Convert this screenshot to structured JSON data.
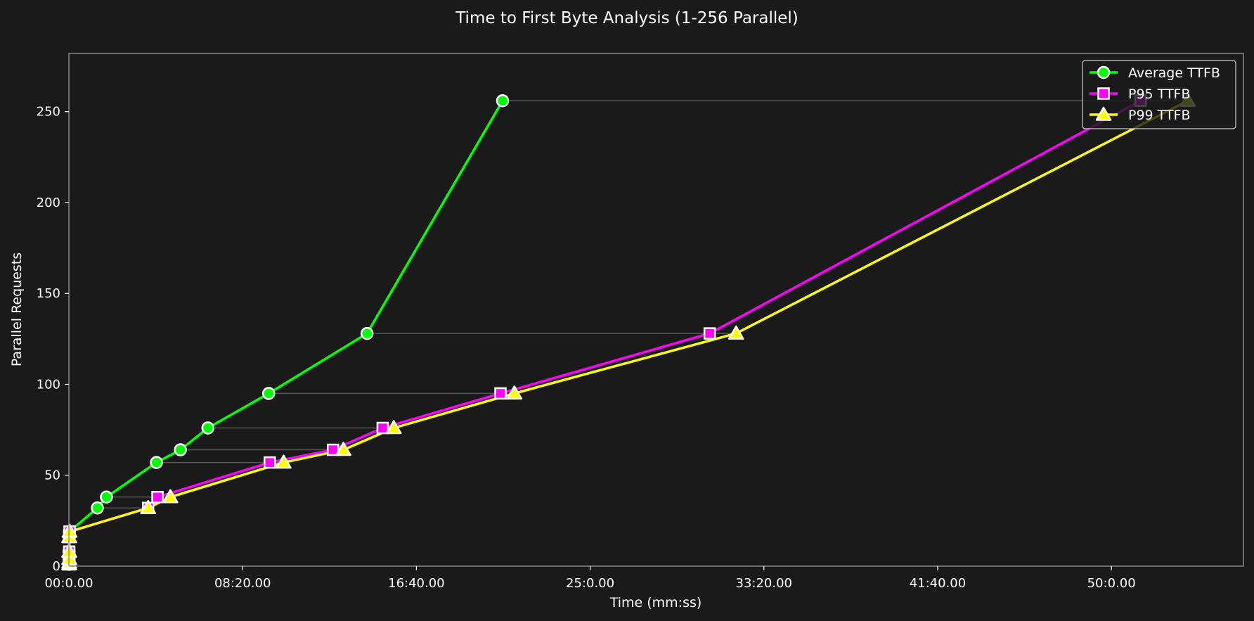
{
  "chart_data": {
    "type": "line",
    "title": "Time to First Byte Analysis (1-256 Parallel)",
    "xlabel": "Time (mm:ss)",
    "ylabel": "Parallel Requests",
    "x_unit": "seconds",
    "xlim": [
      0,
      3380
    ],
    "ylim": [
      0,
      282
    ],
    "x_ticks": [
      {
        "value": 0,
        "label": "00:0.00"
      },
      {
        "value": 500,
        "label": "08:20.00"
      },
      {
        "value": 1000,
        "label": "16:40.00"
      },
      {
        "value": 1500,
        "label": "25:0.00"
      },
      {
        "value": 2000,
        "label": "33:20.00"
      },
      {
        "value": 2500,
        "label": "41:40.00"
      },
      {
        "value": 3000,
        "label": "50:0.00"
      }
    ],
    "y_ticks": [
      0,
      50,
      100,
      150,
      200,
      250
    ],
    "legend_position": "top-right",
    "grid": false,
    "colors": {
      "background": "#1a1a1a",
      "axes_frame": "#888888",
      "connector": "#555555",
      "average": "#00ff00",
      "p95": "#ff00ff",
      "p99": "#ffff00"
    },
    "series": [
      {
        "name": "Average TTFB",
        "key": "average",
        "marker": "circle",
        "points": [
          [
            0.5,
            1
          ],
          [
            0.5,
            2
          ],
          [
            0.5,
            4
          ],
          [
            0.5,
            8
          ],
          [
            1,
            16
          ],
          [
            1.5,
            19
          ],
          [
            82,
            32
          ],
          [
            108,
            38
          ],
          [
            252,
            57
          ],
          [
            321,
            64
          ],
          [
            400,
            76
          ],
          [
            575,
            95
          ],
          [
            858,
            128
          ],
          [
            1248,
            256
          ]
        ]
      },
      {
        "name": "P95 TTFB",
        "key": "p95",
        "marker": "square",
        "points": [
          [
            1,
            1
          ],
          [
            1,
            2
          ],
          [
            1,
            4
          ],
          [
            1,
            8
          ],
          [
            1,
            16
          ],
          [
            2,
            19
          ],
          [
            228,
            32
          ],
          [
            255,
            38
          ],
          [
            578,
            57
          ],
          [
            760,
            64
          ],
          [
            903,
            76
          ],
          [
            1242,
            95
          ],
          [
            1844,
            128
          ],
          [
            3084,
            256
          ]
        ]
      },
      {
        "name": "P99 TTFB",
        "key": "p99",
        "marker": "triangle",
        "points": [
          [
            1,
            1
          ],
          [
            1,
            2
          ],
          [
            1,
            4
          ],
          [
            1,
            8
          ],
          [
            1,
            16
          ],
          [
            2,
            19
          ],
          [
            228,
            32
          ],
          [
            292,
            38
          ],
          [
            618,
            57
          ],
          [
            790,
            64
          ],
          [
            935,
            76
          ],
          [
            1282,
            95
          ],
          [
            1920,
            128
          ],
          [
            3220,
            256
          ]
        ]
      }
    ]
  }
}
